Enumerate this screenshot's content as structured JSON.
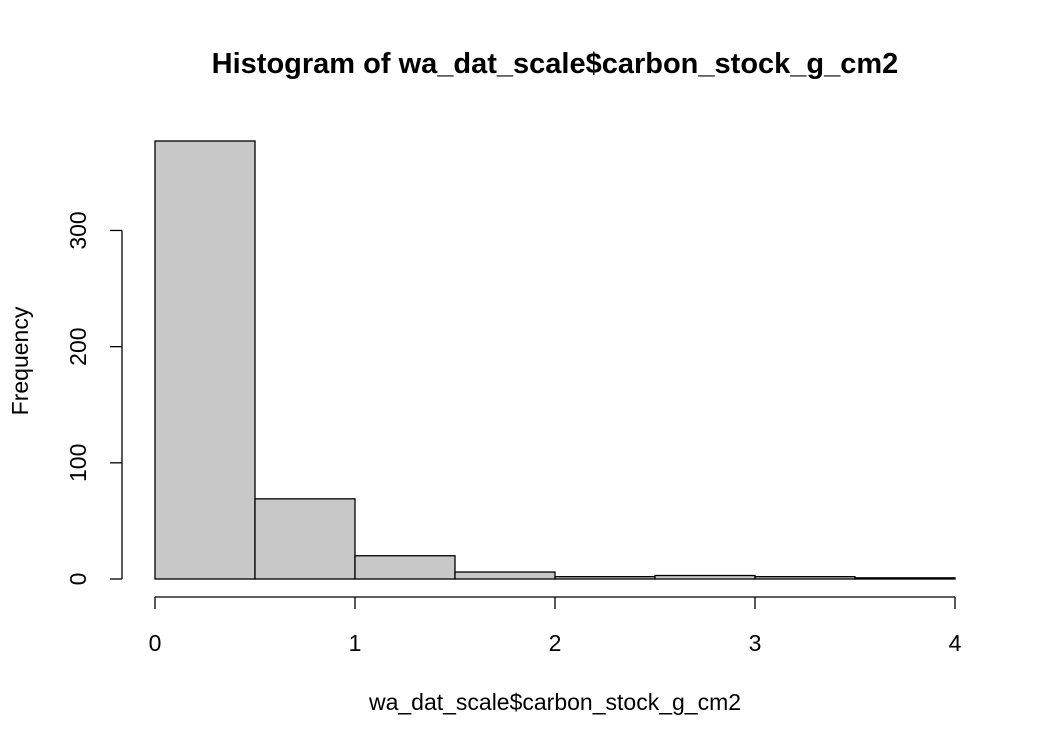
{
  "chart_data": {
    "type": "bar",
    "title": "Histogram of wa_dat_scale$carbon_stock_g_cm2",
    "xlabel": "wa_dat_scale$carbon_stock_g_cm2",
    "ylabel": "Frequency",
    "bins": [
      {
        "x0": 0.0,
        "x1": 0.5,
        "count": 377
      },
      {
        "x0": 0.5,
        "x1": 1.0,
        "count": 69
      },
      {
        "x0": 1.0,
        "x1": 1.5,
        "count": 20
      },
      {
        "x0": 1.5,
        "x1": 2.0,
        "count": 6
      },
      {
        "x0": 2.0,
        "x1": 2.5,
        "count": 2
      },
      {
        "x0": 2.5,
        "x1": 3.0,
        "count": 3
      },
      {
        "x0": 3.0,
        "x1": 3.5,
        "count": 2
      },
      {
        "x0": 3.5,
        "x1": 4.0,
        "count": 1
      }
    ],
    "xlim": [
      0,
      4
    ],
    "ylim": [
      0,
      377
    ],
    "x_ticks": [
      0,
      1,
      2,
      3,
      4
    ],
    "y_ticks": [
      0,
      100,
      200,
      300
    ],
    "x_tick_labels": [
      "0",
      "1",
      "2",
      "3",
      "4"
    ],
    "y_tick_labels": [
      "0",
      "100",
      "200",
      "300"
    ],
    "bar_fill": "#c8c8c8",
    "bar_stroke": "#000000",
    "grid": false,
    "legend": "none"
  }
}
